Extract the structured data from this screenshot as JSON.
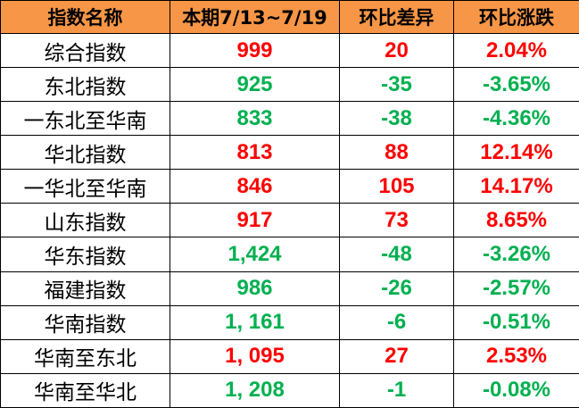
{
  "colors": {
    "header_bg": "#f79646",
    "up": "#ff0000",
    "down": "#00b050"
  },
  "headers": [
    "指数名称",
    "本期7/13~7/19",
    "环比差异",
    "环比涨跌"
  ],
  "rows": [
    {
      "name": "综合指数",
      "value": "999",
      "diff": "20",
      "pct": "2.04%",
      "trend": "up"
    },
    {
      "name": "东北指数",
      "value": "925",
      "diff": "-35",
      "pct": "-3.65%",
      "trend": "down"
    },
    {
      "name": "一东北至华南",
      "value": "833",
      "diff": "-38",
      "pct": "-4.36%",
      "trend": "down"
    },
    {
      "name": "华北指数",
      "value": "813",
      "diff": "88",
      "pct": "12.14%",
      "trend": "up"
    },
    {
      "name": "一华北至华南",
      "value": "846",
      "diff": "105",
      "pct": "14.17%",
      "trend": "up"
    },
    {
      "name": "山东指数",
      "value": "917",
      "diff": "73",
      "pct": "8.65%",
      "trend": "up"
    },
    {
      "name": "华东指数",
      "value": "1,424",
      "diff": "-48",
      "pct": "-3.26%",
      "trend": "down"
    },
    {
      "name": "福建指数",
      "value": "986",
      "diff": "-26",
      "pct": "-2.57%",
      "trend": "down"
    },
    {
      "name": "华南指数",
      "value": "1, 161",
      "diff": "-6",
      "pct": "-0.51%",
      "trend": "down"
    },
    {
      "name": "华南至东北",
      "value": "1, 095",
      "diff": "27",
      "pct": "2.53%",
      "trend": "up"
    },
    {
      "name": "华南至华北",
      "value": "1, 208",
      "diff": "-1",
      "pct": "-0.08%",
      "trend": "down"
    }
  ]
}
